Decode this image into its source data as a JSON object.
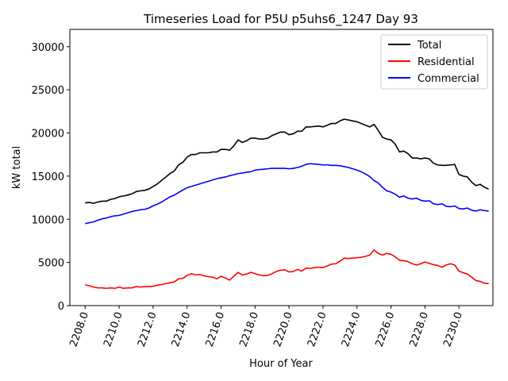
{
  "chart_data": {
    "type": "line",
    "title": "Timeseries Load for P5U p5uhs6_1247  Day 93",
    "xlabel": "Hour of Year",
    "ylabel": "kW total",
    "xlim": [
      2207.1,
      2232.0
    ],
    "ylim": [
      0,
      32000
    ],
    "xticks": [
      2208,
      2210,
      2212,
      2214,
      2216,
      2218,
      2220,
      2222,
      2224,
      2226,
      2228,
      2230
    ],
    "xtick_labels": [
      "2208.0",
      "2210.0",
      "2212.0",
      "2214.0",
      "2216.0",
      "2218.0",
      "2220.0",
      "2222.0",
      "2224.0",
      "2226.0",
      "2228.0",
      "2230.0"
    ],
    "yticks": [
      0,
      5000,
      10000,
      15000,
      20000,
      25000,
      30000
    ],
    "ytick_labels": [
      "0",
      "5000",
      "10000",
      "15000",
      "20000",
      "25000",
      "30000"
    ],
    "legend_position": "top-right",
    "x": [
      2208.0,
      2208.25,
      2208.5,
      2208.75,
      2209.0,
      2209.25,
      2209.5,
      2209.75,
      2210.0,
      2210.25,
      2210.5,
      2210.75,
      2211.0,
      2211.25,
      2211.5,
      2211.75,
      2212.0,
      2212.25,
      2212.5,
      2212.75,
      2213.0,
      2213.25,
      2213.5,
      2213.75,
      2214.0,
      2214.25,
      2214.5,
      2214.75,
      2215.0,
      2215.25,
      2215.5,
      2215.75,
      2216.0,
      2216.25,
      2216.5,
      2216.75,
      2217.0,
      2217.25,
      2217.5,
      2217.75,
      2218.0,
      2218.25,
      2218.5,
      2218.75,
      2219.0,
      2219.25,
      2219.5,
      2219.75,
      2220.0,
      2220.25,
      2220.5,
      2220.75,
      2221.0,
      2221.25,
      2221.5,
      2221.75,
      2222.0,
      2222.25,
      2222.5,
      2222.75,
      2223.0,
      2223.25,
      2223.5,
      2223.75,
      2224.0,
      2224.25,
      2224.5,
      2224.75,
      2225.0,
      2225.25,
      2225.5,
      2225.75,
      2226.0,
      2226.25,
      2226.5,
      2226.75,
      2227.0,
      2227.25,
      2227.5,
      2227.75,
      2228.0,
      2228.25,
      2228.5,
      2228.75,
      2229.0,
      2229.25,
      2229.5,
      2229.75,
      2230.0,
      2230.25,
      2230.5,
      2230.75,
      2231.0,
      2231.25,
      2231.5,
      2231.75
    ],
    "series": [
      {
        "name": "Total",
        "color": "#000000",
        "values": [
          11900,
          11950,
          11850,
          12000,
          12100,
          12100,
          12300,
          12400,
          12600,
          12700,
          12800,
          12950,
          13200,
          13300,
          13350,
          13500,
          13800,
          14100,
          14500,
          14900,
          15300,
          15600,
          16300,
          16600,
          17200,
          17500,
          17500,
          17700,
          17700,
          17700,
          17800,
          17800,
          18100,
          18100,
          18000,
          18500,
          19200,
          18900,
          19100,
          19400,
          19400,
          19300,
          19300,
          19400,
          19700,
          19900,
          20100,
          20100,
          19800,
          19900,
          20200,
          20200,
          20700,
          20700,
          20750,
          20800,
          20700,
          20900,
          21100,
          21100,
          21400,
          21600,
          21500,
          21400,
          21300,
          21100,
          20900,
          20700,
          21000,
          20300,
          19500,
          19300,
          19200,
          18700,
          17800,
          17900,
          17600,
          17100,
          17100,
          17000,
          17100,
          17000,
          16500,
          16300,
          16250,
          16250,
          16300,
          16350,
          15200,
          15000,
          14900,
          14300,
          13900,
          14050,
          13700,
          13500
        ]
      },
      {
        "name": "Residential",
        "color": "#ff0000",
        "values": [
          2400,
          2300,
          2150,
          2050,
          2050,
          2000,
          2050,
          2000,
          2150,
          2000,
          2050,
          2050,
          2200,
          2150,
          2200,
          2200,
          2250,
          2350,
          2450,
          2550,
          2650,
          2750,
          3100,
          3150,
          3500,
          3700,
          3550,
          3600,
          3450,
          3350,
          3300,
          3100,
          3400,
          3200,
          2950,
          3400,
          3850,
          3550,
          3650,
          3850,
          3700,
          3550,
          3450,
          3500,
          3700,
          3950,
          4100,
          4150,
          3900,
          3950,
          4200,
          4000,
          4350,
          4300,
          4400,
          4450,
          4400,
          4600,
          4800,
          4850,
          5150,
          5500,
          5450,
          5500,
          5550,
          5600,
          5700,
          5850,
          6450,
          6050,
          5850,
          6050,
          5950,
          5650,
          5250,
          5200,
          5100,
          4850,
          4700,
          4850,
          5050,
          4900,
          4750,
          4650,
          4450,
          4700,
          4850,
          4700,
          4000,
          3800,
          3650,
          3300,
          2900,
          2800,
          2600,
          2550
        ]
      },
      {
        "name": "Commercial",
        "color": "#0000ff",
        "values": [
          9500,
          9600,
          9700,
          9900,
          10050,
          10150,
          10300,
          10400,
          10450,
          10600,
          10750,
          10900,
          11000,
          11100,
          11150,
          11300,
          11550,
          11750,
          12000,
          12300,
          12600,
          12800,
          13100,
          13400,
          13650,
          13800,
          13950,
          14100,
          14250,
          14400,
          14550,
          14700,
          14800,
          14900,
          15050,
          15150,
          15300,
          15350,
          15450,
          15500,
          15700,
          15750,
          15800,
          15850,
          15900,
          15900,
          15900,
          15900,
          15850,
          15900,
          16000,
          16150,
          16350,
          16450,
          16400,
          16350,
          16300,
          16300,
          16250,
          16250,
          16200,
          16100,
          16000,
          15850,
          15700,
          15500,
          15250,
          14950,
          14500,
          14200,
          13700,
          13300,
          13150,
          12900,
          12550,
          12700,
          12450,
          12350,
          12450,
          12200,
          12100,
          12150,
          11800,
          11700,
          11800,
          11500,
          11450,
          11550,
          11250,
          11200,
          11300,
          11050,
          10950,
          11100,
          11000,
          10950
        ]
      }
    ]
  }
}
